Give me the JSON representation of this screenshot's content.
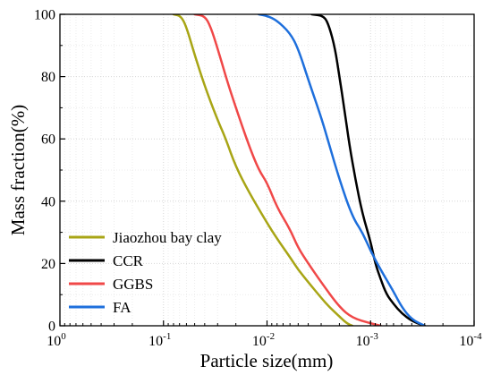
{
  "chart_data": {
    "type": "line",
    "title": "",
    "xlabel": "Particle size(mm)",
    "ylabel": "Mass fraction(%)",
    "x_scale": "log",
    "x_reversed": true,
    "xlim": [
      1,
      0.0001
    ],
    "ylim": [
      0,
      100
    ],
    "grid": "light dotted grid with minor log gridlines",
    "legend_position": "lower-left",
    "x_ticks": [
      {
        "base": "10",
        "exp": "0"
      },
      {
        "base": "10",
        "exp": "-1"
      },
      {
        "base": "10",
        "exp": "-2"
      },
      {
        "base": "10",
        "exp": "-3"
      },
      {
        "base": "10",
        "exp": "-4"
      }
    ],
    "y_ticks": [
      "0",
      "20",
      "40",
      "60",
      "80",
      "100"
    ],
    "series": [
      {
        "name": "Jiaozhou bay clay",
        "color": "#a8a515",
        "points": [
          [
            0.08,
            100
          ],
          [
            0.068,
            99.5
          ],
          [
            0.06,
            96
          ],
          [
            0.05,
            87
          ],
          [
            0.04,
            77
          ],
          [
            0.03,
            66
          ],
          [
            0.025,
            60
          ],
          [
            0.02,
            51
          ],
          [
            0.015,
            43
          ],
          [
            0.01,
            33
          ],
          [
            0.008,
            28
          ],
          [
            0.006,
            22
          ],
          [
            0.005,
            18
          ],
          [
            0.004,
            14
          ],
          [
            0.003,
            9
          ],
          [
            0.0025,
            6
          ],
          [
            0.002,
            3
          ],
          [
            0.0017,
            0.8
          ],
          [
            0.0015,
            0
          ]
        ]
      },
      {
        "name": "CCR",
        "color": "#000000",
        "points": [
          [
            0.0037,
            100
          ],
          [
            0.0028,
            99.5
          ],
          [
            0.0025,
            96
          ],
          [
            0.0022,
            89
          ],
          [
            0.002,
            80
          ],
          [
            0.0018,
            70
          ],
          [
            0.0016,
            58
          ],
          [
            0.0014,
            47
          ],
          [
            0.0012,
            36
          ],
          [
            0.001,
            27
          ],
          [
            0.0009,
            20
          ],
          [
            0.0008,
            15
          ],
          [
            0.0007,
            10
          ],
          [
            0.0006,
            7
          ],
          [
            0.0005,
            4
          ],
          [
            0.0004,
            1.5
          ],
          [
            0.0003,
            0
          ]
        ]
      },
      {
        "name": "GGBS",
        "color": "#f04848",
        "points": [
          [
            0.05,
            100
          ],
          [
            0.04,
            99.5
          ],
          [
            0.035,
            96
          ],
          [
            0.03,
            89
          ],
          [
            0.025,
            80
          ],
          [
            0.02,
            70
          ],
          [
            0.015,
            58
          ],
          [
            0.012,
            50
          ],
          [
            0.01,
            46
          ],
          [
            0.008,
            38
          ],
          [
            0.006,
            31
          ],
          [
            0.005,
            25
          ],
          [
            0.004,
            20
          ],
          [
            0.003,
            14
          ],
          [
            0.002,
            6
          ],
          [
            0.0015,
            2.5
          ],
          [
            0.001,
            0.8
          ],
          [
            0.0008,
            0
          ]
        ]
      },
      {
        "name": "FA",
        "color": "#1e6fdc",
        "points": [
          [
            0.012,
            100
          ],
          [
            0.01,
            99.5
          ],
          [
            0.008,
            98
          ],
          [
            0.006,
            94
          ],
          [
            0.005,
            89
          ],
          [
            0.004,
            79
          ],
          [
            0.003,
            67
          ],
          [
            0.0025,
            58
          ],
          [
            0.002,
            47
          ],
          [
            0.0015,
            35
          ],
          [
            0.0012,
            30
          ],
          [
            0.001,
            24
          ],
          [
            0.0008,
            18
          ],
          [
            0.0006,
            11
          ],
          [
            0.0005,
            6
          ],
          [
            0.0004,
            2
          ],
          [
            0.0003,
            0
          ]
        ]
      }
    ]
  }
}
